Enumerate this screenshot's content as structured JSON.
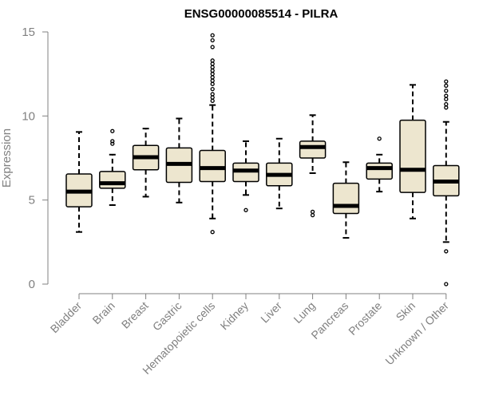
{
  "chart_data": {
    "type": "boxplot",
    "title": "ENSG00000085514 - PILRA",
    "xlabel": "",
    "ylabel": "Expression",
    "ylim": [
      0,
      15
    ],
    "yticks": [
      0,
      5,
      10,
      15
    ],
    "grid": false,
    "colors": {
      "box_fill": "#ede6cf",
      "box_stroke": "#000000",
      "median": "#000000",
      "axis": "#808080",
      "tick_text": "#808080"
    },
    "categories": [
      "Bladder",
      "Brain",
      "Breast",
      "Gastric",
      "Hematopoietic cells",
      "Kidney",
      "Liver",
      "Lung",
      "Pancreas",
      "Prostate",
      "Skin",
      "Unknown / Other"
    ],
    "boxes": [
      {
        "category": "Bladder",
        "whisker_low": 3.1,
        "q1": 4.6,
        "median": 5.5,
        "q3": 6.55,
        "whisker_high": 9.05,
        "outliers": []
      },
      {
        "category": "Brain",
        "whisker_low": 4.7,
        "q1": 5.7,
        "median": 6.0,
        "q3": 6.7,
        "whisker_high": 7.7,
        "outliers": [
          8.35,
          8.5,
          9.1
        ]
      },
      {
        "category": "Breast",
        "whisker_low": 5.2,
        "q1": 6.8,
        "median": 7.55,
        "q3": 8.25,
        "whisker_high": 9.25,
        "outliers": []
      },
      {
        "category": "Gastric",
        "whisker_low": 4.85,
        "q1": 6.05,
        "median": 7.15,
        "q3": 8.1,
        "whisker_high": 9.85,
        "outliers": []
      },
      {
        "category": "Hematopoietic cells",
        "whisker_low": 3.9,
        "q1": 6.1,
        "median": 6.9,
        "q3": 7.95,
        "whisker_high": 10.65,
        "outliers": [
          3.1,
          10.9,
          11.1,
          11.3,
          11.6,
          11.9,
          12.1,
          12.3,
          12.5,
          12.7,
          12.9,
          13.1,
          13.3,
          14.1,
          14.5,
          14.8
        ]
      },
      {
        "category": "Kidney",
        "whisker_low": 5.3,
        "q1": 6.1,
        "median": 6.75,
        "q3": 7.2,
        "whisker_high": 8.5,
        "outliers": [
          4.4
        ]
      },
      {
        "category": "Liver",
        "whisker_low": 4.5,
        "q1": 5.85,
        "median": 6.5,
        "q3": 7.2,
        "whisker_high": 8.65,
        "outliers": []
      },
      {
        "category": "Lung",
        "whisker_low": 6.6,
        "q1": 7.5,
        "median": 8.15,
        "q3": 8.5,
        "whisker_high": 10.05,
        "outliers": [
          4.1,
          4.3
        ]
      },
      {
        "category": "Pancreas",
        "whisker_low": 2.75,
        "q1": 4.2,
        "median": 4.65,
        "q3": 6.0,
        "whisker_high": 7.25,
        "outliers": []
      },
      {
        "category": "Prostate",
        "whisker_low": 5.5,
        "q1": 6.25,
        "median": 6.9,
        "q3": 7.2,
        "whisker_high": 7.7,
        "outliers": [
          8.65
        ]
      },
      {
        "category": "Skin",
        "whisker_low": 3.9,
        "q1": 5.45,
        "median": 6.8,
        "q3": 9.75,
        "whisker_high": 11.85,
        "outliers": []
      },
      {
        "category": "Unknown / Other",
        "whisker_low": 2.5,
        "q1": 5.25,
        "median": 6.1,
        "q3": 7.05,
        "whisker_high": 9.65,
        "outliers": [
          0.0,
          1.95,
          10.5,
          10.7,
          11.0,
          11.2,
          11.5,
          11.8,
          12.05
        ]
      }
    ]
  }
}
